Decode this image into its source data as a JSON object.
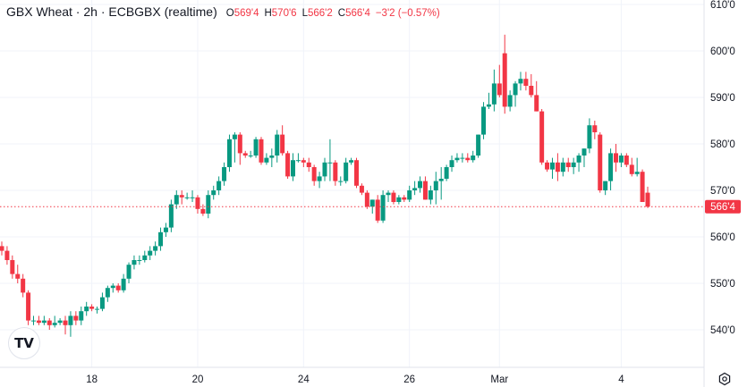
{
  "header": {
    "title": "GBX Wheat · 2h · ECBGBX (realtime)",
    "open_label": "O",
    "open": "569'4",
    "high_label": "H",
    "high": "570'6",
    "low_label": "L",
    "low": "566'2",
    "close_label": "C",
    "close": "566'4",
    "change": "−3'2 (−0.57%)"
  },
  "logo": "TV",
  "icons": {
    "settings": "gear-icon"
  },
  "colors": {
    "up": "#089981",
    "down": "#f23645",
    "grid": "#f0f3fa",
    "text": "#131722"
  },
  "chart_data": {
    "type": "candlestick",
    "title": "GBX Wheat · 2h · ECBGBX (realtime)",
    "ylim": [
      533,
      611
    ],
    "y_ticks": [
      "610'0",
      "600'0",
      "590'0",
      "580'0",
      "570'0",
      "560'0",
      "550'0",
      "540'0"
    ],
    "y_tick_values": [
      610,
      600,
      590,
      580,
      570,
      560,
      550,
      540
    ],
    "x_ticks": [
      {
        "label": "18",
        "index": 17
      },
      {
        "label": "20",
        "index": 37
      },
      {
        "label": "24",
        "index": 57
      },
      {
        "label": "26",
        "index": 77
      },
      {
        "label": "Mar",
        "index": 94
      },
      {
        "label": "4",
        "index": 117
      }
    ],
    "last_price": 566.5,
    "last_price_label": "566'4",
    "grid": true,
    "candles": [
      [
        558,
        559,
        556,
        557
      ],
      [
        557,
        558,
        554,
        555
      ],
      [
        555,
        556,
        551,
        552
      ],
      [
        552,
        554,
        550,
        551
      ],
      [
        551,
        552,
        547,
        548
      ],
      [
        548,
        548.5,
        541,
        542
      ],
      [
        542,
        543,
        541,
        542
      ],
      [
        542,
        543,
        541,
        541.5
      ],
      [
        541.5,
        543,
        541,
        542
      ],
      [
        542,
        542.5,
        540,
        541
      ],
      [
        541,
        543,
        540.5,
        541.5
      ],
      [
        541.5,
        542.5,
        541,
        542
      ],
      [
        542,
        543,
        539,
        541
      ],
      [
        541,
        544,
        538.5,
        543
      ],
      [
        543,
        544,
        541,
        542
      ],
      [
        542,
        545,
        541,
        544
      ],
      [
        544,
        546,
        543,
        545
      ],
      [
        545,
        545.5,
        544,
        544.5
      ],
      [
        544.5,
        545,
        543.5,
        544.5
      ],
      [
        544.5,
        548,
        544,
        547
      ],
      [
        547,
        549.5,
        546,
        549
      ],
      [
        549,
        550,
        548,
        549.5
      ],
      [
        549.5,
        550,
        548,
        548.5
      ],
      [
        548.5,
        552,
        548,
        551
      ],
      [
        551,
        554.5,
        550,
        554
      ],
      [
        554,
        556,
        553,
        555
      ],
      [
        555,
        556,
        554,
        555
      ],
      [
        555,
        557,
        554.5,
        556
      ],
      [
        556,
        558,
        555,
        557
      ],
      [
        557,
        559,
        556,
        558
      ],
      [
        558,
        562,
        557,
        561
      ],
      [
        561,
        563,
        560,
        562
      ],
      [
        562,
        568,
        561,
        567
      ],
      [
        567,
        570,
        566,
        569
      ],
      [
        569,
        570,
        567,
        568.5
      ],
      [
        568.5,
        569.5,
        568,
        568.5
      ],
      [
        568.5,
        570,
        567.5,
        568.5
      ],
      [
        568.5,
        569,
        565,
        566
      ],
      [
        566,
        567,
        564.5,
        565
      ],
      [
        565,
        570,
        564,
        569
      ],
      [
        569,
        571,
        568,
        570
      ],
      [
        570,
        573,
        569,
        572
      ],
      [
        572,
        576,
        571,
        575
      ],
      [
        575,
        582,
        574,
        581
      ],
      [
        581,
        582.5,
        576,
        582
      ],
      [
        582,
        582.5,
        575.5,
        578
      ],
      [
        578,
        578.5,
        577,
        577.5
      ],
      [
        577.5,
        578.5,
        577,
        577.5
      ],
      [
        577.5,
        581.5,
        577,
        581
      ],
      [
        581,
        581.5,
        575.5,
        576
      ],
      [
        576,
        578,
        575.5,
        577
      ],
      [
        577,
        579,
        575,
        577.5
      ],
      [
        577.5,
        583,
        576,
        582
      ],
      [
        582,
        584,
        577.5,
        578
      ],
      [
        578,
        578.5,
        572.5,
        573
      ],
      [
        573,
        578,
        572,
        576.5
      ],
      [
        576.5,
        578,
        576,
        576.5
      ],
      [
        576.5,
        577,
        575,
        576
      ],
      [
        576,
        577,
        574,
        575
      ],
      [
        575,
        575.5,
        571,
        572
      ],
      [
        572,
        574,
        570.5,
        573
      ],
      [
        573,
        577,
        572,
        576
      ],
      [
        576,
        581,
        572,
        576
      ],
      [
        576,
        576.5,
        571,
        572
      ],
      [
        572,
        573,
        571,
        572
      ],
      [
        572,
        577,
        571.5,
        576
      ],
      [
        576,
        577,
        575.5,
        576.5
      ],
      [
        576.5,
        577,
        570.5,
        571
      ],
      [
        571,
        571.5,
        569,
        569.5
      ],
      [
        569.5,
        570,
        566,
        566.5
      ],
      [
        566.5,
        568,
        565,
        568
      ],
      [
        568,
        569,
        563,
        563.5
      ],
      [
        563.5,
        570,
        563,
        569
      ],
      [
        569,
        570,
        567.5,
        569.5
      ],
      [
        569.5,
        570,
        567,
        567.5
      ],
      [
        567.5,
        569,
        567,
        568.5
      ],
      [
        568.5,
        569,
        567.5,
        568
      ],
      [
        568,
        571,
        567.5,
        570
      ],
      [
        570,
        572,
        569,
        570.5
      ],
      [
        570.5,
        573,
        569.5,
        572
      ],
      [
        572,
        573,
        568,
        568
      ],
      [
        568,
        571,
        567,
        570
      ],
      [
        570,
        574,
        567,
        572
      ],
      [
        572,
        575,
        568,
        572.5
      ],
      [
        572.5,
        575.5,
        572,
        575
      ],
      [
        575,
        577.5,
        574,
        576.5
      ],
      [
        576.5,
        578,
        576,
        577
      ],
      [
        577,
        578,
        576,
        577
      ],
      [
        577,
        578,
        576,
        576.5
      ],
      [
        576.5,
        578.5,
        576,
        577.5
      ],
      [
        577.5,
        582,
        577,
        582
      ],
      [
        582,
        589,
        581,
        588
      ],
      [
        588,
        591,
        587.5,
        588.5
      ],
      [
        588.5,
        596,
        587,
        593
      ],
      [
        593,
        597,
        590,
        590.5
      ],
      [
        599.5,
        603.5,
        586.5,
        588
      ],
      [
        588,
        591.5,
        587,
        590.5
      ],
      [
        590.5,
        593.5,
        588,
        593
      ],
      [
        593,
        595.5,
        591.5,
        594
      ],
      [
        594,
        595.5,
        591.5,
        592.5
      ],
      [
        592.5,
        595,
        590,
        590.5
      ],
      [
        590.5,
        593.5,
        587,
        587
      ],
      [
        587,
        587.5,
        575.5,
        576
      ],
      [
        576,
        576.5,
        574,
        574.5
      ],
      [
        574.5,
        577,
        572.5,
        576
      ],
      [
        576,
        578,
        572,
        574
      ],
      [
        574,
        577,
        573,
        576
      ],
      [
        576,
        577,
        574,
        575
      ],
      [
        575,
        577,
        573.5,
        576
      ],
      [
        576,
        578,
        574,
        577.5
      ],
      [
        577.5,
        579,
        575,
        579
      ],
      [
        579,
        585.5,
        578,
        584
      ],
      [
        584,
        585,
        581,
        582.5
      ],
      [
        582,
        582.5,
        569.5,
        570
      ],
      [
        570,
        572,
        569,
        572
      ],
      [
        572,
        579,
        570,
        578
      ],
      [
        578,
        580,
        574,
        576
      ],
      [
        576,
        578,
        575,
        577.5
      ],
      [
        577.5,
        578,
        575,
        575.5
      ],
      [
        575.5,
        577,
        573,
        573.5
      ],
      [
        573.5,
        577,
        573,
        574
      ],
      [
        574,
        574.5,
        567.5,
        567.5
      ],
      [
        569.5,
        570.8,
        566.2,
        566.5
      ]
    ]
  }
}
